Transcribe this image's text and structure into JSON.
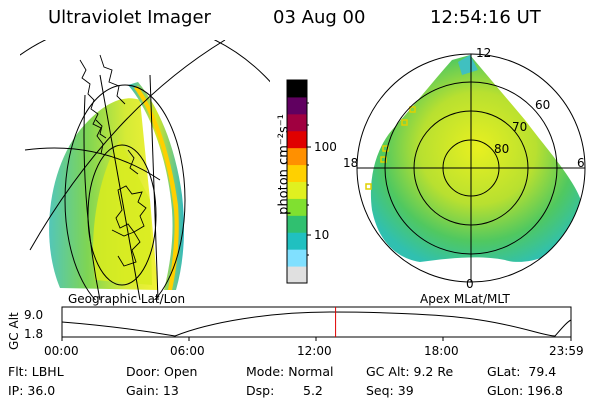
{
  "header": {
    "instrument": "Ultraviolet Imager",
    "date": "03 Aug 00",
    "time": "12:54:16 UT"
  },
  "left_panel": {
    "label": "Geographic Lat/Lon"
  },
  "right_panel": {
    "label": "Apex MLat/MLT",
    "lat_labels": [
      "60",
      "70",
      "80"
    ],
    "mlt_labels": [
      "12",
      "18",
      "6",
      "0"
    ]
  },
  "colorbar": {
    "unit_label": "photon cm⁻²s⁻¹",
    "ticks": [
      "100",
      "10"
    ],
    "scale": "log",
    "colors": [
      "#e0e0e0",
      "#80e0ff",
      "#20c0c0",
      "#30c070",
      "#80e030",
      "#e0f020",
      "#ffd000",
      "#ff9000",
      "#e00000",
      "#a00040",
      "#600060",
      "#000000"
    ]
  },
  "timeline": {
    "axis_label": "GC Alt",
    "y_ticks": [
      "9.0",
      "1.8"
    ],
    "x_ticks": [
      "00:00",
      "06:00",
      "12:00",
      "18:00",
      "23:59"
    ],
    "marker_color": "#e00000",
    "marker_time_hours": 12.9
  },
  "info": {
    "flt": "Flt: LBHL",
    "ip": "IP: 36.0",
    "door": "Door: Open",
    "gain": "Gain: 13",
    "mode": "Mode: Normal",
    "dsp_label": "Dsp:",
    "dsp_value": "5.2",
    "gc_alt": "GC Alt: 9.2 Re",
    "seq": "Seq: 39",
    "glat": "GLat:  79.4",
    "glon": "GLon: 196.8"
  }
}
